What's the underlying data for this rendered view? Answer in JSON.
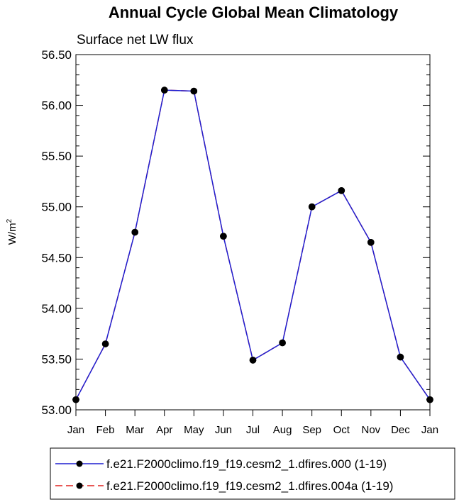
{
  "chart_data": {
    "type": "line",
    "title": "Annual Cycle Global Mean Climatology",
    "subtitle": "Surface net LW flux",
    "ylabel_base": "W/m",
    "ylabel_sup": "2",
    "categories": [
      "Jan",
      "Feb",
      "Mar",
      "Apr",
      "May",
      "Jun",
      "Jul",
      "Aug",
      "Sep",
      "Oct",
      "Nov",
      "Dec",
      "Jan"
    ],
    "ylim": [
      53.0,
      56.5
    ],
    "yticks": [
      "53.00",
      "53.50",
      "54.00",
      "54.50",
      "55.00",
      "55.50",
      "56.00",
      "56.50"
    ],
    "series": [
      {
        "name": "f.e21.F2000climo.f19_f19.cesm2_1.dfires.000 (1-19)",
        "color": "#1f1fd1",
        "style": "solid",
        "values": [
          53.1,
          53.65,
          54.75,
          56.15,
          56.14,
          54.71,
          53.49,
          53.66,
          55.0,
          55.16,
          54.65,
          53.52,
          53.1
        ]
      },
      {
        "name": "f.e21.F2000climo.f19_f19.cesm2_1.dfires.004a (1-19)",
        "color": "#e0201e",
        "style": "dashed",
        "values": [
          53.1,
          53.65,
          54.75,
          56.15,
          56.14,
          54.71,
          53.49,
          53.66,
          55.0,
          55.16,
          54.65,
          53.52,
          53.1
        ]
      }
    ],
    "grid": false,
    "legend_position": "bottom"
  }
}
